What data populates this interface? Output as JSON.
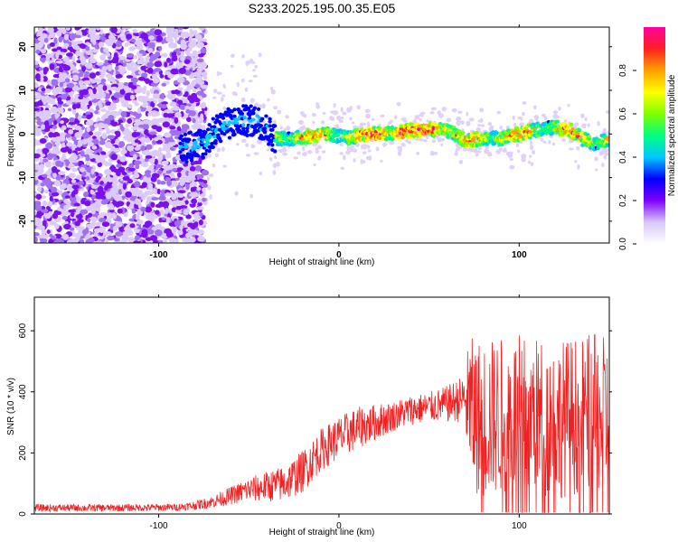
{
  "figure": {
    "title": "S233.2025.195.00.35.E05"
  },
  "chart_data": [
    {
      "type": "heatmap",
      "xlabel": "Height of straight line (km)",
      "ylabel": "Frequency (Hz)",
      "xlim": [
        -169,
        150
      ],
      "ylim": [
        -25,
        24.5
      ],
      "x_ticks": [
        -100,
        0,
        100
      ],
      "y_ticks": [
        -20,
        -10,
        0,
        10,
        20
      ],
      "x_tick_labels": [
        "-100",
        "0",
        "100"
      ],
      "y_tick_labels": [
        "-20",
        "-10",
        "0",
        "10",
        "20"
      ],
      "colorbar": {
        "label": "Normalized spectral amplitude",
        "range": [
          0,
          1
        ],
        "ticks": [
          0.0,
          0.2,
          0.4,
          0.6,
          0.8
        ],
        "tick_labels": [
          "0.0",
          "0.2",
          "0.4",
          "0.6",
          "0.8"
        ],
        "colors": [
          "#ffffff",
          "#d8c8f8",
          "#8000ff",
          "#0000ff",
          "#00c8ff",
          "#00ff80",
          "#80ff00",
          "#ffff00",
          "#ffa000",
          "#ff2020",
          "#ff00a0"
        ]
      },
      "ridge": {
        "x": [
          -85,
          -75,
          -65,
          -55,
          -45,
          -35,
          -25,
          -15,
          -5,
          5,
          15,
          25,
          35,
          45,
          55,
          62,
          70,
          80,
          90,
          100,
          110,
          120,
          128,
          135,
          142,
          150
        ],
        "y": [
          -3,
          -2,
          2,
          3,
          3,
          -1,
          -1,
          -0.5,
          0,
          -1,
          0,
          0,
          0.5,
          1,
          1,
          0.5,
          -1.5,
          -1,
          -1,
          0,
          1,
          1.5,
          1,
          -1,
          -2.5,
          -1
        ]
      }
    },
    {
      "type": "line",
      "xlabel": "Height of straight line (km)",
      "ylabel": "SNR (10 * v/v)",
      "xlim": [
        -169,
        150
      ],
      "ylim": [
        0,
        710
      ],
      "x_ticks": [
        -100,
        0,
        100
      ],
      "y_ticks": [
        0,
        200,
        400,
        600
      ],
      "x_tick_labels": [
        "-100",
        "0",
        "100"
      ],
      "y_tick_labels": [
        "0",
        "200",
        "400",
        "600"
      ],
      "series": [
        {
          "color": "#ee2222",
          "envelope_x": [
            -169,
            -120,
            -90,
            -80,
            -70,
            -60,
            -50,
            -40,
            -30,
            -20,
            -10,
            0,
            10,
            20,
            30,
            40,
            50,
            60,
            70,
            72,
            80,
            90,
            100,
            110,
            120,
            130,
            140,
            150
          ],
          "envelope_mean": [
            20,
            20,
            22,
            28,
            40,
            60,
            80,
            90,
            100,
            140,
            210,
            250,
            280,
            300,
            320,
            340,
            350,
            360,
            380,
            330,
            310,
            320,
            330,
            320,
            310,
            320,
            330,
            320
          ],
          "envelope_spread": [
            12,
            12,
            12,
            15,
            20,
            30,
            40,
            50,
            60,
            70,
            70,
            70,
            70,
            60,
            50,
            50,
            50,
            60,
            80,
            250,
            260,
            260,
            260,
            260,
            260,
            260,
            260,
            260
          ]
        }
      ]
    }
  ]
}
